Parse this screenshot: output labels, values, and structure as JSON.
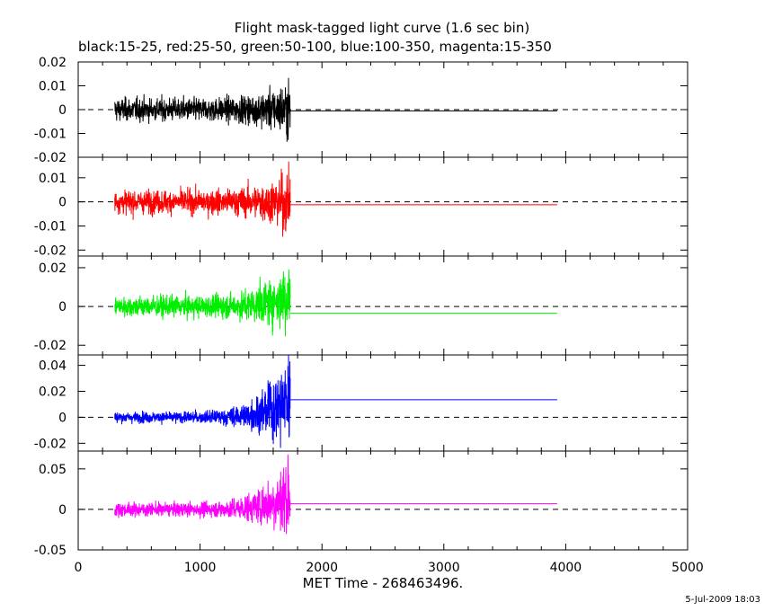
{
  "chart_data": {
    "type": "line",
    "title": "Flight mask-tagged light curve (1.6 sec bin)",
    "subtitle": "black:15-25, red:25-50, green:50-100, blue:100-350, magenta:15-350",
    "xlabel": "MET Time - 268463496.",
    "xlim": [
      0,
      5000
    ],
    "xticks": [
      "0",
      "1000",
      "2000",
      "3000",
      "4000",
      "5000"
    ],
    "timestamp": "5-Jul-2009 18:03",
    "data_span": [
      300,
      1740
    ],
    "mean_span": [
      1740,
      3930
    ],
    "panels": [
      {
        "color": "#000000",
        "ylim": [
          -0.02,
          0.02
        ],
        "yticks": [
          [
            "0.02",
            0.02
          ],
          [
            "0.01",
            0.01
          ],
          [
            "0",
            0
          ],
          [
            "-0.01",
            -0.01
          ],
          [
            "-0.02",
            -0.02
          ]
        ],
        "noise": 0.004,
        "grow": 0.006,
        "mean": -0.0005
      },
      {
        "color": "#ff0000",
        "ylim": [
          -0.0225,
          0.0185
        ],
        "yticks": [
          [
            "0.01",
            0.01
          ],
          [
            "0",
            0
          ],
          [
            "-0.01",
            -0.01
          ],
          [
            "-0.02",
            -0.02
          ]
        ],
        "noise": 0.004,
        "grow": 0.007,
        "mean": -0.0012
      },
      {
        "color": "#00ee00",
        "ylim": [
          -0.025,
          0.026
        ],
        "yticks": [
          [
            "0.02",
            0.02
          ],
          [
            "0",
            0
          ],
          [
            "-0.02",
            -0.02
          ]
        ],
        "noise": 0.0045,
        "grow": 0.012,
        "mean": -0.0035
      },
      {
        "color": "#0000ff",
        "ylim": [
          -0.026,
          0.048
        ],
        "yticks": [
          [
            "0.04",
            0.04
          ],
          [
            "0.02",
            0.02
          ],
          [
            "0",
            0
          ],
          [
            "-0.02",
            -0.02
          ]
        ],
        "noise": 0.0035,
        "grow": 0.03,
        "mean": 0.0135
      },
      {
        "color": "#ff00ff",
        "ylim": [
          -0.05,
          0.072
        ],
        "yticks": [
          [
            "0.05",
            0.05
          ],
          [
            "0",
            0
          ],
          [
            "-0.05",
            -0.05
          ]
        ],
        "noise": 0.007,
        "grow": 0.04,
        "mean": 0.007
      }
    ]
  }
}
